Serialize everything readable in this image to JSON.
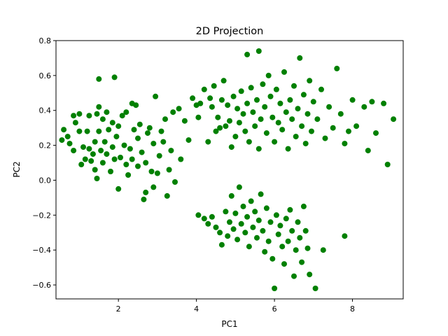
{
  "chart_data": {
    "type": "scatter",
    "title": "2D Projection",
    "xlabel": "PC1",
    "ylabel": "PC2",
    "xlim": [
      0.4,
      9.3
    ],
    "ylim": [
      -0.68,
      0.8
    ],
    "xticks": [
      2,
      4,
      6,
      8
    ],
    "xtick_labels": [
      "2",
      "4",
      "6",
      "8"
    ],
    "yticks": [
      -0.6,
      -0.4,
      -0.2,
      0.0,
      0.2,
      0.4,
      0.6,
      0.8
    ],
    "ytick_labels": [
      "−0.6",
      "−0.4",
      "−0.2",
      "0.0",
      "0.2",
      "0.4",
      "0.6",
      "0.8"
    ],
    "grid": false,
    "legend": "none",
    "marker_color": "#008000",
    "series": [
      {
        "color": "#008000",
        "points": [
          [
            0.55,
            0.23
          ],
          [
            0.6,
            0.29
          ],
          [
            0.7,
            0.25
          ],
          [
            0.75,
            0.21
          ],
          [
            0.85,
            0.37
          ],
          [
            0.85,
            0.17
          ],
          [
            0.9,
            0.33
          ],
          [
            1.0,
            0.38
          ],
          [
            1.0,
            0.28
          ],
          [
            1.05,
            0.09
          ],
          [
            1.1,
            0.19
          ],
          [
            1.15,
            0.12
          ],
          [
            1.2,
            0.28
          ],
          [
            1.25,
            0.37
          ],
          [
            1.25,
            0.18
          ],
          [
            1.3,
            0.11
          ],
          [
            1.35,
            0.15
          ],
          [
            1.4,
            0.06
          ],
          [
            1.4,
            0.22
          ],
          [
            1.45,
            0.38
          ],
          [
            1.45,
            0.01
          ],
          [
            1.5,
            0.42
          ],
          [
            1.5,
            0.58
          ],
          [
            1.5,
            0.28
          ],
          [
            1.55,
            0.17
          ],
          [
            1.6,
            0.35
          ],
          [
            1.6,
            0.1
          ],
          [
            1.65,
            0.22
          ],
          [
            1.7,
            0.39
          ],
          [
            1.7,
            0.15
          ],
          [
            1.75,
            0.29
          ],
          [
            1.8,
            0.05
          ],
          [
            1.85,
            0.19
          ],
          [
            1.85,
            0.33
          ],
          [
            1.9,
            0.59
          ],
          [
            1.9,
            0.12
          ],
          [
            1.95,
            0.25
          ],
          [
            2.0,
            -0.05
          ],
          [
            2.0,
            0.31
          ],
          [
            2.05,
            0.13
          ],
          [
            2.1,
            0.37
          ],
          [
            2.15,
            0.2
          ],
          [
            2.2,
            0.09
          ],
          [
            2.2,
            0.39
          ],
          [
            2.25,
            0.03
          ],
          [
            2.3,
            0.18
          ],
          [
            2.35,
            0.12
          ],
          [
            2.35,
            0.44
          ],
          [
            2.4,
            0.29
          ],
          [
            2.45,
            0.43
          ],
          [
            2.5,
            0.08
          ],
          [
            2.5,
            0.24
          ],
          [
            2.55,
            0.32
          ],
          [
            2.6,
            0.16
          ],
          [
            2.65,
            -0.11
          ],
          [
            2.7,
            -0.07
          ],
          [
            2.7,
            0.1
          ],
          [
            2.75,
            0.27
          ],
          [
            2.8,
            0.3
          ],
          [
            2.85,
            0.05
          ],
          [
            2.9,
            -0.04
          ],
          [
            2.9,
            0.21
          ],
          [
            2.95,
            0.48
          ],
          [
            3.0,
            0.04
          ],
          [
            3.05,
            0.14
          ],
          [
            3.1,
            0.28
          ],
          [
            3.15,
            0.22
          ],
          [
            3.2,
            0.35
          ],
          [
            3.25,
            -0.09
          ],
          [
            3.3,
            0.06
          ],
          [
            3.35,
            0.17
          ],
          [
            3.4,
            0.39
          ],
          [
            3.45,
            -0.01
          ],
          [
            3.55,
            0.41
          ],
          [
            3.6,
            0.12
          ],
          [
            3.7,
            0.34
          ],
          [
            3.8,
            0.23
          ],
          [
            3.9,
            0.47
          ],
          [
            4.0,
            0.43
          ],
          [
            4.05,
            0.36
          ],
          [
            4.1,
            0.44
          ],
          [
            4.2,
            0.52
          ],
          [
            4.3,
            0.22
          ],
          [
            4.35,
            0.47
          ],
          [
            4.4,
            0.42
          ],
          [
            4.45,
            0.54
          ],
          [
            4.5,
            0.28
          ],
          [
            4.55,
            0.36
          ],
          [
            4.6,
            0.3
          ],
          [
            4.65,
            0.46
          ],
          [
            4.7,
            0.57
          ],
          [
            4.75,
            0.31
          ],
          [
            4.8,
            0.43
          ],
          [
            4.85,
            0.34
          ],
          [
            4.9,
            0.19
          ],
          [
            4.95,
            0.48
          ],
          [
            5.0,
            0.25
          ],
          [
            5.05,
            0.41
          ],
          [
            5.1,
            0.33
          ],
          [
            5.15,
            0.51
          ],
          [
            5.2,
            0.38
          ],
          [
            5.25,
            0.28
          ],
          [
            5.3,
            0.72
          ],
          [
            5.3,
            0.44
          ],
          [
            5.35,
            0.22
          ],
          [
            5.4,
            0.53
          ],
          [
            5.45,
            0.39
          ],
          [
            5.5,
            0.31
          ],
          [
            5.55,
            0.46
          ],
          [
            5.6,
            0.74
          ],
          [
            5.6,
            0.18
          ],
          [
            5.65,
            0.35
          ],
          [
            5.7,
            0.55
          ],
          [
            5.75,
            0.42
          ],
          [
            5.8,
            0.27
          ],
          [
            5.85,
            0.6
          ],
          [
            5.9,
            0.48
          ],
          [
            5.95,
            0.36
          ],
          [
            6.0,
            0.22
          ],
          [
            6.05,
            0.52
          ],
          [
            6.1,
            0.33
          ],
          [
            6.15,
            0.44
          ],
          [
            6.2,
            0.29
          ],
          [
            6.25,
            0.62
          ],
          [
            6.3,
            0.39
          ],
          [
            6.35,
            0.18
          ],
          [
            6.4,
            0.46
          ],
          [
            6.45,
            0.35
          ],
          [
            6.5,
            0.54
          ],
          [
            6.55,
            0.25
          ],
          [
            6.6,
            0.41
          ],
          [
            6.65,
            0.7
          ],
          [
            6.7,
            0.31
          ],
          [
            6.75,
            0.49
          ],
          [
            6.8,
            0.21
          ],
          [
            6.85,
            0.38
          ],
          [
            6.9,
            0.57
          ],
          [
            6.95,
            0.28
          ],
          [
            7.0,
            0.45
          ],
          [
            7.1,
            0.35
          ],
          [
            7.2,
            0.52
          ],
          [
            7.3,
            0.24
          ],
          [
            7.4,
            0.42
          ],
          [
            7.5,
            0.3
          ],
          [
            7.6,
            0.64
          ],
          [
            7.7,
            0.38
          ],
          [
            7.8,
            0.21
          ],
          [
            7.9,
            0.28
          ],
          [
            8.0,
            0.46
          ],
          [
            8.1,
            0.31
          ],
          [
            8.3,
            0.42
          ],
          [
            8.4,
            0.17
          ],
          [
            8.5,
            0.45
          ],
          [
            8.6,
            0.27
          ],
          [
            8.8,
            0.44
          ],
          [
            8.9,
            0.09
          ],
          [
            9.05,
            0.35
          ],
          [
            4.05,
            -0.2
          ],
          [
            4.2,
            -0.22
          ],
          [
            4.3,
            -0.25
          ],
          [
            4.4,
            -0.21
          ],
          [
            4.5,
            -0.27
          ],
          [
            4.6,
            -0.3
          ],
          [
            4.65,
            -0.37
          ],
          [
            4.75,
            -0.18
          ],
          [
            4.8,
            -0.32
          ],
          [
            4.85,
            -0.24
          ],
          [
            4.9,
            -0.09
          ],
          [
            4.95,
            -0.28
          ],
          [
            5.0,
            -0.19
          ],
          [
            5.05,
            -0.34
          ],
          [
            5.1,
            -0.04
          ],
          [
            5.15,
            -0.25
          ],
          [
            5.2,
            -0.15
          ],
          [
            5.25,
            -0.3
          ],
          [
            5.3,
            -0.21
          ],
          [
            5.35,
            -0.38
          ],
          [
            5.4,
            -0.12
          ],
          [
            5.45,
            -0.27
          ],
          [
            5.5,
            -0.18
          ],
          [
            5.55,
            -0.33
          ],
          [
            5.6,
            -0.23
          ],
          [
            5.65,
            -0.08
          ],
          [
            5.7,
            -0.29
          ],
          [
            5.75,
            -0.41
          ],
          [
            5.8,
            -0.16
          ],
          [
            5.85,
            -0.35
          ],
          [
            5.9,
            -0.24
          ],
          [
            5.95,
            -0.45
          ],
          [
            6.0,
            -0.62
          ],
          [
            6.05,
            -0.2
          ],
          [
            6.1,
            -0.31
          ],
          [
            6.15,
            -0.26
          ],
          [
            6.2,
            -0.38
          ],
          [
            6.25,
            -0.48
          ],
          [
            6.3,
            -0.22
          ],
          [
            6.35,
            -0.35
          ],
          [
            6.4,
            -0.17
          ],
          [
            6.45,
            -0.29
          ],
          [
            6.5,
            -0.55
          ],
          [
            6.55,
            -0.4
          ],
          [
            6.6,
            -0.24
          ],
          [
            6.65,
            -0.33
          ],
          [
            6.7,
            -0.47
          ],
          [
            6.75,
            -0.15
          ],
          [
            6.8,
            -0.29
          ],
          [
            6.85,
            -0.39
          ],
          [
            6.9,
            -0.54
          ],
          [
            7.05,
            -0.62
          ],
          [
            7.25,
            -0.4
          ],
          [
            7.8,
            -0.32
          ]
        ]
      }
    ]
  }
}
